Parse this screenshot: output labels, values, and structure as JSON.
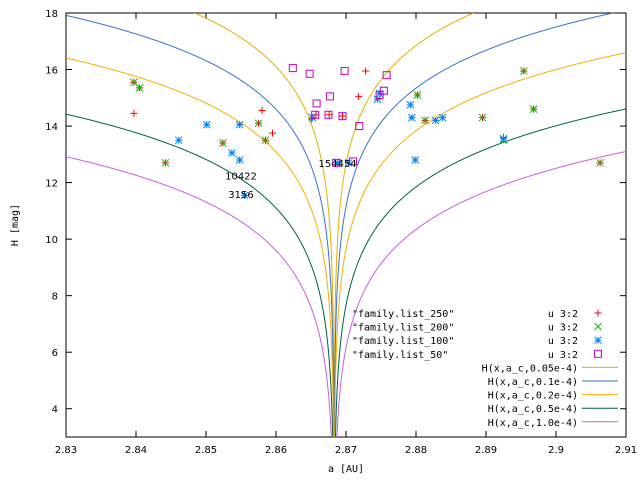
{
  "chart_data": {
    "type": "scatter",
    "xlabel": "a [AU]",
    "ylabel": "H [mag]",
    "xlim": [
      2.83,
      2.91
    ],
    "ylim": [
      3,
      18
    ],
    "x_ticks": [
      "2.83",
      "2.84",
      "2.85",
      "2.86",
      "2.87",
      "2.88",
      "2.89",
      "2.9",
      "2.91"
    ],
    "y_ticks": [
      "4",
      "6",
      "8",
      "10",
      "12",
      "14",
      "16",
      "18"
    ],
    "grid": false,
    "legend_position": "bottom-right",
    "series": [
      {
        "name": "\"family.list_250\"",
        "style": "u 3:2",
        "marker": "plus",
        "color": "#ff0000",
        "points": [
          [
            2.8397,
            14.45
          ],
          [
            2.8397,
            15.55
          ],
          [
            2.8405,
            15.35
          ],
          [
            2.8442,
            12.7
          ],
          [
            2.8524,
            13.4
          ],
          [
            2.8575,
            14.1
          ],
          [
            2.858,
            14.55
          ],
          [
            2.8585,
            13.5
          ],
          [
            2.8595,
            13.75
          ],
          [
            2.8651,
            14.25
          ],
          [
            2.8657,
            14.4
          ],
          [
            2.8676,
            14.4
          ],
          [
            2.8695,
            14.35
          ],
          [
            2.8718,
            15.05
          ],
          [
            2.8728,
            15.95
          ],
          [
            2.8802,
            15.1
          ],
          [
            2.8813,
            14.2
          ],
          [
            2.8895,
            14.3
          ],
          [
            2.8925,
            13.6
          ],
          [
            2.8954,
            15.95
          ],
          [
            2.8968,
            14.6
          ],
          [
            2.9063,
            12.7
          ]
        ]
      },
      {
        "name": "\"family.list_200\"",
        "style": "u 3:2",
        "marker": "x",
        "color": "#00c000",
        "points": [
          [
            2.8397,
            15.55
          ],
          [
            2.8405,
            15.35
          ],
          [
            2.8442,
            12.7
          ],
          [
            2.8524,
            13.4
          ],
          [
            2.8575,
            14.1
          ],
          [
            2.8585,
            13.5
          ],
          [
            2.8802,
            15.1
          ],
          [
            2.8813,
            14.2
          ],
          [
            2.8895,
            14.3
          ],
          [
            2.8925,
            13.5
          ],
          [
            2.8954,
            15.95
          ],
          [
            2.8968,
            14.6
          ],
          [
            2.9063,
            12.7
          ]
        ]
      },
      {
        "name": "\"family.list_100\"",
        "style": "u 3:2",
        "marker": "star",
        "color": "#0080ff",
        "points": [
          [
            2.8461,
            13.5
          ],
          [
            2.8501,
            14.05
          ],
          [
            2.8537,
            13.05
          ],
          [
            2.8548,
            14.05
          ],
          [
            2.8548,
            12.8
          ],
          [
            2.8555,
            11.55
          ],
          [
            2.8652,
            14.3
          ],
          [
            2.8688,
            12.7
          ],
          [
            2.8704,
            12.7
          ],
          [
            2.8745,
            14.95
          ],
          [
            2.8748,
            15.15
          ],
          [
            2.8792,
            14.75
          ],
          [
            2.8794,
            14.3
          ],
          [
            2.8799,
            12.8
          ],
          [
            2.8828,
            14.2
          ],
          [
            2.8838,
            14.3
          ],
          [
            2.8925,
            13.55
          ]
        ]
      },
      {
        "name": "\"family.list_50\"",
        "style": "u 3:2",
        "marker": "square",
        "color": "#c000c0",
        "points": [
          [
            2.8624,
            16.05
          ],
          [
            2.8648,
            15.85
          ],
          [
            2.8656,
            14.4
          ],
          [
            2.8658,
            14.8
          ],
          [
            2.8675,
            14.4
          ],
          [
            2.8677,
            15.05
          ],
          [
            2.8686,
            12.7
          ],
          [
            2.8695,
            14.35
          ],
          [
            2.8698,
            15.95
          ],
          [
            2.871,
            12.75
          ],
          [
            2.8719,
            14.0
          ],
          [
            2.8748,
            15.1
          ],
          [
            2.8754,
            15.25
          ],
          [
            2.8758,
            15.8
          ]
        ]
      }
    ],
    "curves": [
      {
        "name": "H(x,a_c,0.05e-4)",
        "C": 5e-06,
        "color": "#e0b000"
      },
      {
        "name": "H(x,a_c,0.1e-4)",
        "C": 1e-05,
        "color": "#3a6fd0"
      },
      {
        "name": "H(x,a_c,0.2e-4)",
        "C": 2e-05,
        "color": "#f0b000"
      },
      {
        "name": "H(x,a_c,0.5e-4)",
        "C": 5e-05,
        "color": "#006040"
      },
      {
        "name": "H(x,a_c,1.0e-4)",
        "C": 0.0001,
        "color": "#c060e0"
      }
    ],
    "curve_center": 2.8683,
    "annotations": [
      {
        "text": "154454",
        "x": 2.8688,
        "y": 12.7
      },
      {
        "text": "10422",
        "x": 2.855,
        "y": 12.25
      },
      {
        "text": "3156",
        "x": 2.855,
        "y": 11.6
      }
    ]
  }
}
